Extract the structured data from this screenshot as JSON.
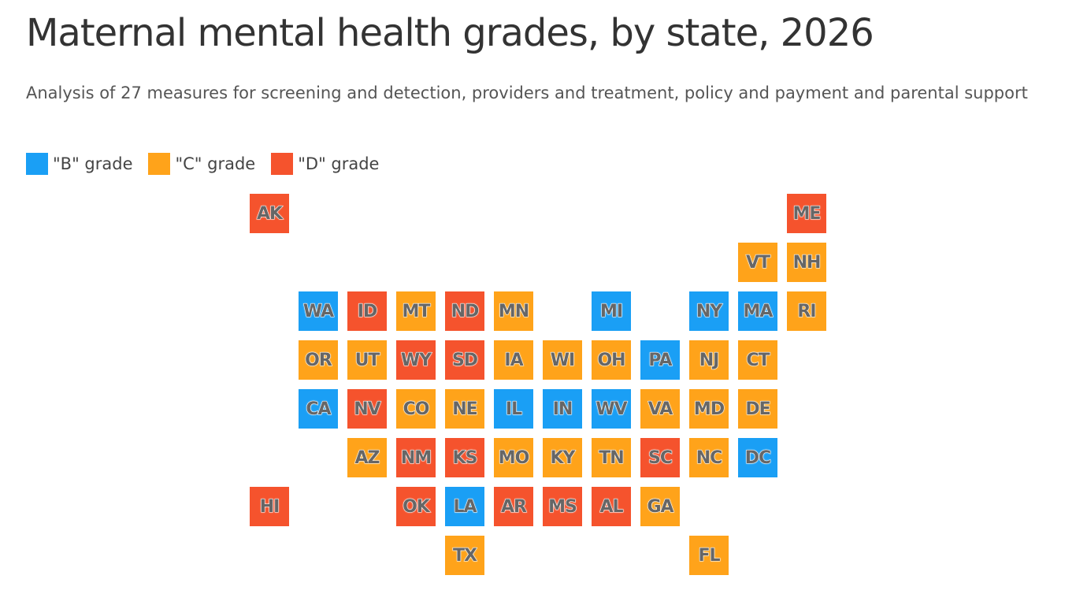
{
  "header": {
    "title": "Maternal mental health grades, by state, 2026",
    "subtitle": "Analysis of 27 measures for screening and detection, providers and treatment, policy and payment and parental support"
  },
  "legend": [
    {
      "label": "\"B\" grade",
      "color": "#1a9ff5"
    },
    {
      "label": "\"C\" grade",
      "color": "#ffa31a"
    },
    {
      "label": "\"D\" grade",
      "color": "#f5532d"
    }
  ],
  "map": {
    "rows": [
      [
        {
          "label": "AK",
          "color": "#f5532d"
        },
        null,
        null,
        null,
        null,
        null,
        null,
        null,
        null,
        null,
        null,
        {
          "label": "ME",
          "color": "#f5532d"
        }
      ],
      [
        null,
        null,
        null,
        null,
        null,
        null,
        null,
        null,
        null,
        null,
        {
          "label": "VT",
          "color": "#ffa31a"
        },
        {
          "label": "NH",
          "color": "#ffa31a"
        }
      ],
      [
        null,
        {
          "label": "WA",
          "color": "#1a9ff5"
        },
        {
          "label": "ID",
          "color": "#f5532d"
        },
        {
          "label": "MT",
          "color": "#ffa31a"
        },
        {
          "label": "ND",
          "color": "#f5532d"
        },
        {
          "label": "MN",
          "color": "#ffa31a"
        },
        null,
        {
          "label": "MI",
          "color": "#1a9ff5"
        },
        null,
        {
          "label": "NY",
          "color": "#1a9ff5"
        },
        {
          "label": "MA",
          "color": "#1a9ff5"
        },
        {
          "label": "RI",
          "color": "#ffa31a"
        }
      ],
      [
        null,
        {
          "label": "OR",
          "color": "#ffa31a"
        },
        {
          "label": "UT",
          "color": "#ffa31a"
        },
        {
          "label": "WY",
          "color": "#f5532d"
        },
        {
          "label": "SD",
          "color": "#f5532d"
        },
        {
          "label": "IA",
          "color": "#ffa31a"
        },
        {
          "label": "WI",
          "color": "#ffa31a"
        },
        {
          "label": "OH",
          "color": "#ffa31a"
        },
        {
          "label": "PA",
          "color": "#1a9ff5"
        },
        {
          "label": "NJ",
          "color": "#ffa31a"
        },
        {
          "label": "CT",
          "color": "#ffa31a"
        },
        null
      ],
      [
        null,
        {
          "label": "CA",
          "color": "#1a9ff5"
        },
        {
          "label": "NV",
          "color": "#f5532d"
        },
        {
          "label": "CO",
          "color": "#ffa31a"
        },
        {
          "label": "NE",
          "color": "#ffa31a"
        },
        {
          "label": "IL",
          "color": "#1a9ff5"
        },
        {
          "label": "IN",
          "color": "#1a9ff5"
        },
        {
          "label": "WV",
          "color": "#1a9ff5"
        },
        {
          "label": "VA",
          "color": "#ffa31a"
        },
        {
          "label": "MD",
          "color": "#ffa31a"
        },
        {
          "label": "DE",
          "color": "#ffa31a"
        },
        null
      ],
      [
        null,
        null,
        {
          "label": "AZ",
          "color": "#ffa31a"
        },
        {
          "label": "NM",
          "color": "#f5532d"
        },
        {
          "label": "KS",
          "color": "#f5532d"
        },
        {
          "label": "MO",
          "color": "#ffa31a"
        },
        {
          "label": "KY",
          "color": "#ffa31a"
        },
        {
          "label": "TN",
          "color": "#ffa31a"
        },
        {
          "label": "SC",
          "color": "#f5532d"
        },
        {
          "label": "NC",
          "color": "#ffa31a"
        },
        {
          "label": "DC",
          "color": "#1a9ff5"
        },
        null
      ],
      [
        {
          "label": "HI",
          "color": "#f5532d"
        },
        null,
        null,
        {
          "label": "OK",
          "color": "#f5532d"
        },
        {
          "label": "LA",
          "color": "#1a9ff5"
        },
        {
          "label": "AR",
          "color": "#f5532d"
        },
        {
          "label": "MS",
          "color": "#f5532d"
        },
        {
          "label": "AL",
          "color": "#f5532d"
        },
        {
          "label": "GA",
          "color": "#ffa31a"
        },
        null,
        null,
        null
      ],
      [
        null,
        null,
        null,
        null,
        {
          "label": "TX",
          "color": "#ffa31a"
        },
        null,
        null,
        null,
        null,
        {
          "label": "FL",
          "color": "#ffa31a"
        },
        null,
        null
      ]
    ]
  }
}
